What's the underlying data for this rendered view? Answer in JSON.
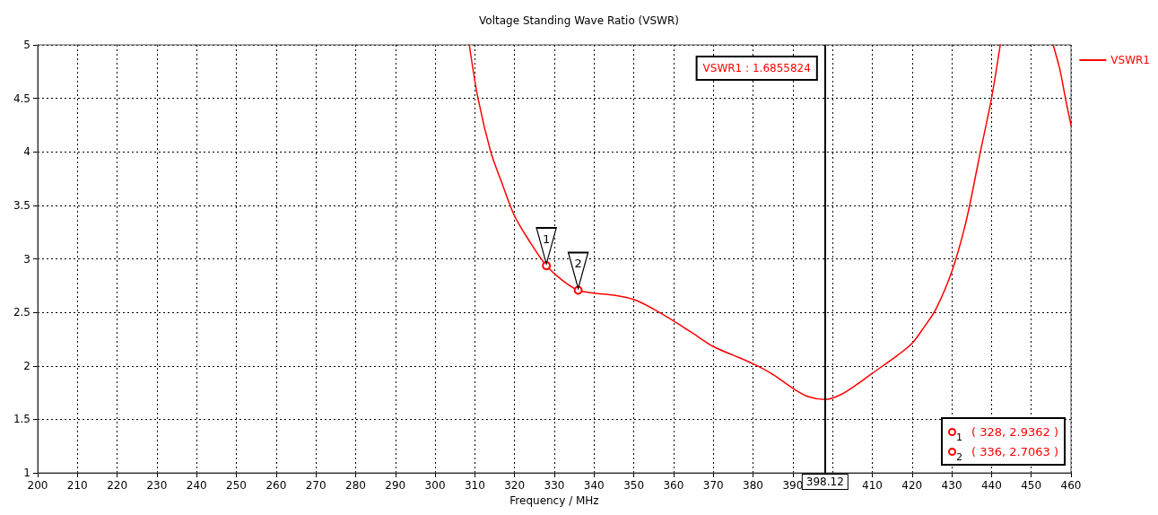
{
  "chart_data": {
    "type": "line",
    "title": "Voltage Standing Wave Ratio (VSWR)",
    "xlabel": "Frequency / MHz",
    "x": [
      308.6,
      310.8,
      314,
      316.5,
      320,
      324,
      328,
      332,
      336,
      340,
      345,
      350,
      355,
      360,
      365,
      370,
      375,
      380,
      385,
      390,
      394,
      398.12,
      402,
      405.9,
      410,
      416.4,
      420,
      423,
      426,
      430,
      433.6,
      437.2,
      440,
      442.2,
      449,
      455.5,
      457.2,
      458.6,
      460
    ],
    "series": [
      {
        "name": "VSWR1",
        "color": "#ff0000",
        "values": [
          5,
          4.5,
          4,
          3.74,
          3.4,
          3.15,
          2.9362,
          2.8,
          2.7063,
          2.68,
          2.66,
          2.62,
          2.53,
          2.42,
          2.3,
          2.18,
          2.1,
          2.02,
          1.92,
          1.79,
          1.71,
          1.6855824,
          1.73,
          1.82,
          1.93,
          2.1,
          2.21,
          2.36,
          2.53,
          2.88,
          3.35,
          4.0,
          4.5,
          5,
          null,
          5,
          4.77,
          4.5,
          4.25
        ]
      }
    ],
    "xlim": [
      200,
      460
    ],
    "xticks": [
      200,
      210,
      220,
      230,
      240,
      250,
      260,
      270,
      280,
      290,
      300,
      310,
      320,
      330,
      340,
      350,
      360,
      370,
      380,
      390,
      {
        "value": 400,
        "label": null
      },
      410,
      420,
      430,
      440,
      450,
      460
    ],
    "ylim": [
      1,
      5
    ],
    "yticks": [
      1,
      1.5,
      2,
      2.5,
      3,
      3.5,
      4,
      4.5,
      5
    ],
    "grid": true,
    "legend": "top right",
    "marker": "none",
    "line_style": "solid",
    "ref_lines": [
      {
        "axis": "x",
        "value": 398.12,
        "label": "398.12",
        "color": "#000000"
      }
    ],
    "annotations": [
      {
        "text": "1",
        "x": 328,
        "y": 2.9362
      },
      {
        "text": "2",
        "x": 336,
        "y": 2.7063
      },
      "VSWR1 : 1.6855824",
      "( 328, 2.9362 )",
      "( 336, 2.7063 )"
    ]
  }
}
